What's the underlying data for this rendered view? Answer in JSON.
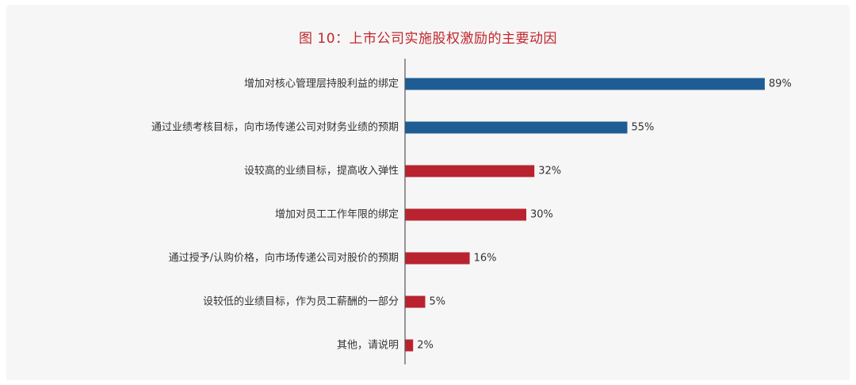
{
  "chart_data": {
    "type": "bar",
    "orientation": "horizontal",
    "title": "图 10：上市公司实施股权激励的主要动因",
    "categories": [
      "增加对核心管理层持股利益的绑定",
      "通过业绩考核目标，向市场传递公司对财务业绩的预期",
      "设较高的业绩目标，提高收入弹性",
      "增加对员工工作年限的绑定",
      "通过授予/认购价格，向市场传递公司对股价的预期",
      "设较低的业绩目标，作为员工薪酬的一部分",
      "其他，请说明"
    ],
    "values": [
      89,
      55,
      32,
      30,
      16,
      5,
      2
    ],
    "value_labels": [
      "89%",
      "55%",
      "32%",
      "30%",
      "16%",
      "5%",
      "2%"
    ],
    "unit": "%",
    "xlim": [
      0,
      100
    ],
    "grid": false,
    "legend": "none",
    "colors": {
      "highlight": "#1f5c94",
      "default": "#b8232f",
      "title": "#c0272d",
      "axis": "#555555"
    },
    "highlight_count": 2
  }
}
